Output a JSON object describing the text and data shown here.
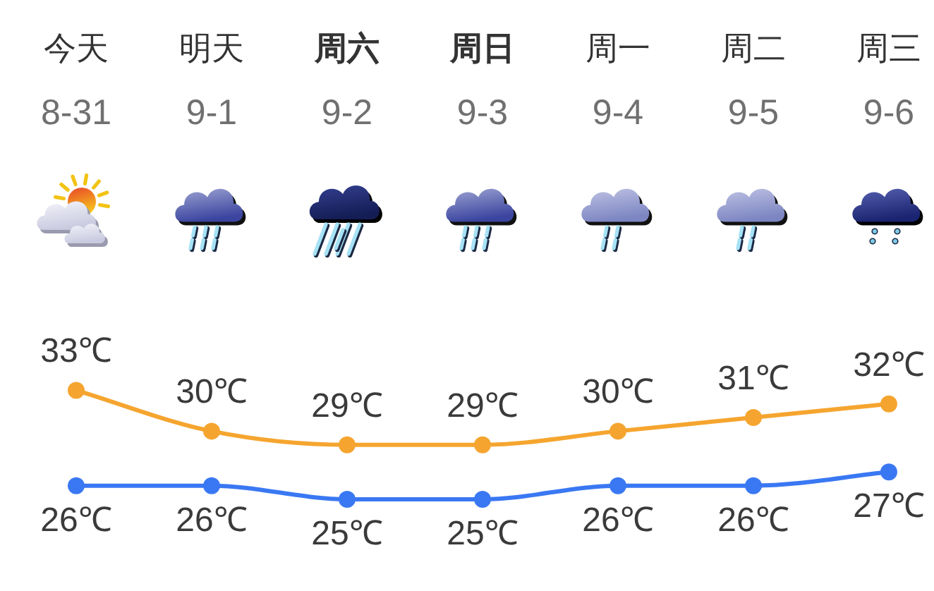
{
  "chart_data": {
    "type": "line",
    "categories": [
      "今天\n8-31",
      "明天\n9-1",
      "**周六**\n9-2",
      "**周日**\n9-3",
      "周一\n9-4",
      "周二\n9-5",
      "周三\n9-6"
    ],
    "marker": "circle",
    "series": [
      {
        "color": "#f5a52f",
        "values": [
          33,
          30,
          29,
          29,
          30,
          31,
          32
        ],
        "value_labels": [
          "33℃",
          "30℃",
          "29℃",
          "29℃",
          "30℃",
          "31℃",
          "32℃"
        ]
      },
      {
        "color": "#3a78f3",
        "values": [
          26,
          26,
          25,
          25,
          26,
          26,
          27
        ],
        "value_labels": [
          "26℃",
          "26℃",
          "25℃",
          "25℃",
          "26℃",
          "26℃",
          "27℃"
        ]
      }
    ]
  }
}
